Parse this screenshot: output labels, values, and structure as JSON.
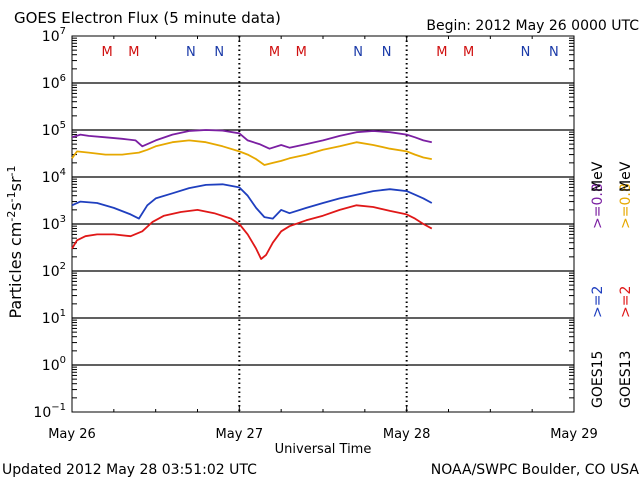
{
  "header": {
    "title": "GOES Electron Flux (5 minute data)",
    "begin": "Begin: 2012 May 26 0000 UTC"
  },
  "footer": {
    "updated": "Updated 2012 May 28 03:51:02 UTC",
    "source": "NOAA/SWPC Boulder, CO USA"
  },
  "colors": {
    "goes15_08": "#7b1fa2",
    "goes13_08": "#e6a800",
    "goes15_2": "#1f3fbf",
    "goes13_2": "#e01818",
    "m_label": "#d01010",
    "n_label": "#1a3aa8"
  },
  "chart_data": {
    "type": "line",
    "title": "GOES Electron Flux (5 minute data)",
    "xlabel": "Universal Time",
    "ylabel": "Particles cm⁻²s⁻¹sr⁻¹",
    "xlim": [
      0,
      3
    ],
    "x_ticks": [
      "May 26",
      "May 27",
      "May 28",
      "May 29"
    ],
    "y_scale": "log",
    "ylim": [
      0.1,
      10000000
    ],
    "y_ticks": [
      {
        "base": "10",
        "exp": "7"
      },
      {
        "base": "10",
        "exp": "6"
      },
      {
        "base": "10",
        "exp": "5"
      },
      {
        "base": "10",
        "exp": "4"
      },
      {
        "base": "10",
        "exp": "3"
      },
      {
        "base": "10",
        "exp": "2"
      },
      {
        "base": "10",
        "exp": "1"
      },
      {
        "base": "10",
        "exp": "0"
      },
      {
        "base": "10",
        "exp": "−1"
      }
    ],
    "threshold": 1000,
    "grid": "major decades",
    "markers": [
      {
        "label": "M",
        "x": 0.21
      },
      {
        "label": "M",
        "x": 0.37
      },
      {
        "label": "N",
        "x": 0.71
      },
      {
        "label": "N",
        "x": 0.88
      },
      {
        "label": "M",
        "x": 1.21
      },
      {
        "label": "M",
        "x": 1.37
      },
      {
        "label": "N",
        "x": 1.71
      },
      {
        "label": "N",
        "x": 1.88
      },
      {
        "label": "M",
        "x": 2.21
      },
      {
        "label": "M",
        "x": 2.37
      },
      {
        "label": "N",
        "x": 2.71
      },
      {
        "label": "N",
        "x": 2.88
      }
    ],
    "legend": [
      {
        "sat": "GOES15",
        "energy": ">=2",
        "unit": "MeV",
        "color": "#1f3fbf"
      },
      {
        "sat": "GOES13",
        "energy": ">=2",
        "unit": "MeV",
        "color": "#e01818"
      },
      {
        "energy": ">=0.8",
        "color": "#7b1fa2"
      },
      {
        "energy": ">=0.8",
        "color": "#e6a800"
      }
    ],
    "series": [
      {
        "name": "GOES15 >=0.8 MeV",
        "color": "#7b1fa2",
        "x": [
          0,
          0.05,
          0.1,
          0.2,
          0.3,
          0.38,
          0.42,
          0.5,
          0.6,
          0.7,
          0.8,
          0.9,
          1.0,
          1.05,
          1.12,
          1.18,
          1.25,
          1.3,
          1.4,
          1.5,
          1.6,
          1.7,
          1.8,
          1.9,
          2.0,
          2.05,
          2.1,
          2.15
        ],
        "y": [
          70000,
          80000,
          75000,
          70000,
          65000,
          60000,
          45000,
          60000,
          80000,
          95000,
          100000,
          97000,
          85000,
          60000,
          50000,
          40000,
          48000,
          42000,
          50000,
          60000,
          75000,
          90000,
          95000,
          90000,
          80000,
          70000,
          60000,
          55000
        ]
      },
      {
        "name": "GOES13 >=0.8 MeV",
        "color": "#e6a800",
        "x": [
          0,
          0.03,
          0.1,
          0.2,
          0.3,
          0.4,
          0.45,
          0.5,
          0.6,
          0.7,
          0.8,
          0.9,
          1.0,
          1.05,
          1.1,
          1.15,
          1.2,
          1.25,
          1.3,
          1.4,
          1.5,
          1.6,
          1.7,
          1.8,
          1.9,
          2.0,
          2.05,
          2.1,
          2.15
        ],
        "y": [
          25000,
          35000,
          33000,
          30000,
          30000,
          33000,
          38000,
          45000,
          55000,
          60000,
          55000,
          45000,
          35000,
          30000,
          24000,
          18000,
          20000,
          22000,
          25000,
          30000,
          38000,
          45000,
          55000,
          48000,
          40000,
          35000,
          30000,
          26000,
          24000
        ]
      },
      {
        "name": "GOES15 >=2 MeV",
        "color": "#1f3fbf",
        "x": [
          0,
          0.05,
          0.15,
          0.25,
          0.35,
          0.4,
          0.45,
          0.5,
          0.6,
          0.7,
          0.8,
          0.9,
          1.0,
          1.05,
          1.1,
          1.15,
          1.2,
          1.25,
          1.3,
          1.4,
          1.5,
          1.6,
          1.7,
          1.8,
          1.9,
          2.0,
          2.05,
          2.1,
          2.15
        ],
        "y": [
          2500,
          3000,
          2800,
          2200,
          1600,
          1300,
          2500,
          3500,
          4500,
          5800,
          6800,
          7000,
          6000,
          4000,
          2200,
          1400,
          1300,
          2000,
          1700,
          2200,
          2800,
          3500,
          4200,
          5000,
          5500,
          5000,
          4200,
          3500,
          2800
        ]
      },
      {
        "name": "GOES13 >=2 MeV",
        "color": "#e01818",
        "x": [
          0,
          0.03,
          0.08,
          0.15,
          0.25,
          0.35,
          0.42,
          0.48,
          0.55,
          0.65,
          0.75,
          0.85,
          0.95,
          1.0,
          1.05,
          1.1,
          1.13,
          1.16,
          1.2,
          1.25,
          1.3,
          1.4,
          1.5,
          1.6,
          1.7,
          1.8,
          1.9,
          2.0,
          2.05,
          2.1,
          2.15
        ],
        "y": [
          300,
          450,
          550,
          600,
          600,
          550,
          700,
          1100,
          1500,
          1800,
          2000,
          1700,
          1300,
          1000,
          600,
          300,
          180,
          220,
          400,
          700,
          900,
          1200,
          1500,
          2000,
          2500,
          2300,
          1900,
          1600,
          1300,
          1000,
          800
        ]
      }
    ]
  }
}
